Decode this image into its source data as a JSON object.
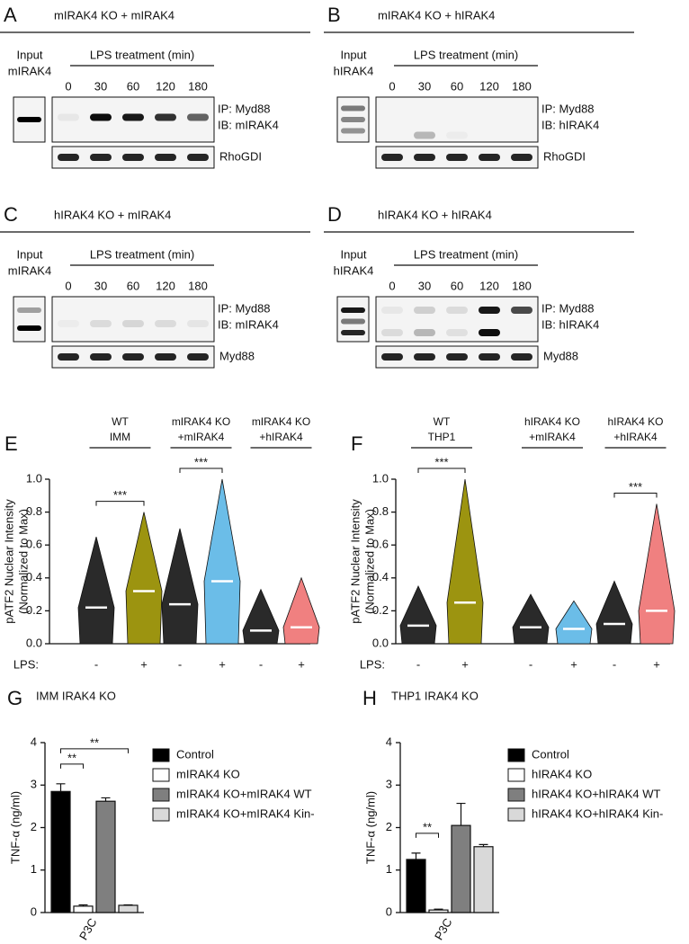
{
  "blots": [
    {
      "letter": "A",
      "title": "mIRAK4 KO + mIRAK4",
      "input_label": [
        "Input",
        "mIRAK4"
      ],
      "treatment_label": "LPS treatment (min)",
      "times": [
        0,
        30,
        60,
        120,
        180
      ],
      "blot_labels": [
        "IP: Myd88",
        "IB: mIRAK4"
      ],
      "loading_label": "RhoGDI"
    },
    {
      "letter": "B",
      "title": "mIRAK4 KO + hIRAK4",
      "input_label": [
        "Input",
        "hIRAK4"
      ],
      "treatment_label": "LPS treatment (min)",
      "times": [
        0,
        30,
        60,
        120,
        180
      ],
      "blot_labels": [
        "IP: Myd88",
        "IB: hIRAK4"
      ],
      "loading_label": "RhoGDI"
    },
    {
      "letter": "C",
      "title": "hIRAK4 KO + mIRAK4",
      "input_label": [
        "Input",
        "mIRAK4"
      ],
      "treatment_label": "LPS treatment (min)",
      "times": [
        0,
        30,
        60,
        120,
        180
      ],
      "blot_labels": [
        "IP: Myd88",
        "IB: mIRAK4"
      ],
      "loading_label": "Myd88"
    },
    {
      "letter": "D",
      "title": "hIRAK4 KO + hIRAK4",
      "input_label": [
        "Input",
        "hIRAK4"
      ],
      "treatment_label": "LPS treatment (min)",
      "times": [
        0,
        30,
        60,
        120,
        180
      ],
      "blot_labels": [
        "IP: Myd88",
        "IB: hIRAK4"
      ],
      "loading_label": "Myd88"
    }
  ],
  "chart_data": [
    {
      "type": "dotplot",
      "letter": "E",
      "ylabel": [
        "pATF2 Nuclear Intensity",
        "(Normalized to Max)"
      ],
      "groups": [
        {
          "label": [
            "WT",
            "IMM"
          ],
          "significance": "***",
          "marker": "triangle"
        },
        {
          "label": [
            "mIRAK4 KO",
            "+mIRAK4"
          ],
          "significance": "***",
          "marker": "circle"
        },
        {
          "label": [
            "mIRAK4 KO",
            "+hIRAK4"
          ],
          "marker": "square"
        }
      ],
      "xlabel": "LPS:",
      "categories": [
        "-",
        "+",
        "-",
        "+",
        "-",
        "+"
      ],
      "values": [
        0.22,
        0.32,
        0.24,
        0.38,
        0.08,
        0.1
      ],
      "ranges": [
        [
          0,
          0.65
        ],
        [
          0,
          0.8
        ],
        [
          0,
          0.7
        ],
        [
          0,
          1.0
        ],
        [
          0,
          0.33
        ],
        [
          0,
          0.4
        ]
      ],
      "colors": [
        "#2a2a2a",
        "#9c9410",
        "#2a2a2a",
        "#6bbde8",
        "#2a2a2a",
        "#f08080"
      ],
      "ylim": [
        0,
        1.0
      ],
      "yticks": [
        {
          "value": 0,
          "label": "0.0"
        },
        {
          "value": 0.2,
          "label": "0.2"
        },
        {
          "value": 0.4,
          "label": "0.4"
        },
        {
          "value": 0.6,
          "label": "0.6"
        },
        {
          "value": 0.8,
          "label": "0.8"
        },
        {
          "value": 1.0,
          "label": "1.0"
        }
      ]
    },
    {
      "type": "dotplot",
      "letter": "F",
      "ylabel": [
        "pATF2 Nuclear Intensity",
        "(Normalized to Max)"
      ],
      "groups": [
        {
          "label": [
            "WT",
            "THP1"
          ],
          "significance": "***",
          "marker": "triangle"
        },
        {
          "label": [
            "hIRAK4 KO",
            "+mIRAK4"
          ],
          "marker": "circle"
        },
        {
          "label": [
            "hIRAK4 KO",
            "+hIRAK4"
          ],
          "significance": "***",
          "marker": "square"
        }
      ],
      "xlabel": "LPS:",
      "categories": [
        "-",
        "+",
        "-",
        "+",
        "-",
        "+"
      ],
      "values": [
        0.11,
        0.25,
        0.1,
        0.09,
        0.12,
        0.2
      ],
      "ranges": [
        [
          0,
          0.35
        ],
        [
          0,
          1.0
        ],
        [
          0,
          0.3
        ],
        [
          0,
          0.26
        ],
        [
          0,
          0.38
        ],
        [
          0,
          0.85
        ]
      ],
      "colors": [
        "#2a2a2a",
        "#9c9410",
        "#2a2a2a",
        "#6bbde8",
        "#2a2a2a",
        "#f08080"
      ],
      "ylim": [
        0,
        1.0
      ],
      "yticks": [
        {
          "value": 0,
          "label": "0.0"
        },
        {
          "value": 0.2,
          "label": "0.2"
        },
        {
          "value": 0.4,
          "label": "0.4"
        },
        {
          "value": 0.6,
          "label": "0.6"
        },
        {
          "value": 0.8,
          "label": "0.8"
        },
        {
          "value": 1.0,
          "label": "1.0"
        }
      ]
    },
    {
      "type": "bar",
      "letter": "G",
      "title": "IMM IRAK4 KO",
      "ylabel": "TNF-α (ng/ml)",
      "categories": [
        "P3C"
      ],
      "series": [
        {
          "name": "Control",
          "color": "#000000",
          "values": [
            2.85
          ],
          "errors": [
            0.18
          ]
        },
        {
          "name": "mIRAK4 KO",
          "color": "#ffffff",
          "values": [
            0.15
          ],
          "errors": [
            0.03
          ]
        },
        {
          "name": "mIRAK4 KO+mIRAK4 WT",
          "color": "#7f7f7f",
          "values": [
            2.62
          ],
          "errors": [
            0.08
          ]
        },
        {
          "name": "mIRAK4 KO+mIRAK4 Kin-",
          "color": "#d9d9d9",
          "values": [
            0.17
          ],
          "errors": [
            0.01
          ]
        }
      ],
      "significance": [
        {
          "label": "**",
          "pair": [
            "Control",
            "mIRAK4 KO"
          ]
        },
        {
          "label": "**",
          "pair": [
            "Control",
            "mIRAK4 KO+mIRAK4 Kin-"
          ]
        }
      ],
      "ylim": [
        0,
        4
      ],
      "yticks": [
        0,
        1,
        2,
        3,
        4
      ]
    },
    {
      "type": "bar",
      "letter": "H",
      "title": "THP1 IRAK4 KO",
      "ylabel": "TNF-α (ng/ml)",
      "categories": [
        "P3C"
      ],
      "series": [
        {
          "name": "Control",
          "color": "#000000",
          "values": [
            1.25
          ],
          "errors": [
            0.15
          ]
        },
        {
          "name": "hIRAK4 KO",
          "color": "#ffffff",
          "values": [
            0.06
          ],
          "errors": [
            0.02
          ]
        },
        {
          "name": "hIRAK4 KO+hIRAK4 WT",
          "color": "#7f7f7f",
          "values": [
            2.05
          ],
          "errors": [
            0.52
          ]
        },
        {
          "name": "hIRAK4 KO+hIRAK4 Kin-",
          "color": "#d9d9d9",
          "values": [
            1.55
          ],
          "errors": [
            0.05
          ]
        }
      ],
      "significance": [
        {
          "label": "**",
          "pair": [
            "Control",
            "hIRAK4 KO"
          ]
        }
      ],
      "ylim": [
        0,
        4
      ],
      "yticks": [
        0,
        1,
        2,
        3,
        4
      ]
    }
  ]
}
